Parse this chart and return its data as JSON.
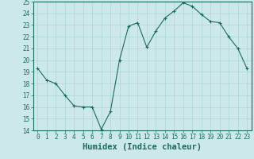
{
  "x": [
    0,
    1,
    2,
    3,
    4,
    5,
    6,
    7,
    8,
    9,
    10,
    11,
    12,
    13,
    14,
    15,
    16,
    17,
    18,
    19,
    20,
    21,
    22,
    23
  ],
  "y": [
    19.3,
    18.3,
    18.0,
    17.0,
    16.1,
    16.0,
    16.0,
    14.1,
    15.6,
    20.0,
    22.9,
    23.2,
    21.1,
    22.5,
    23.6,
    24.2,
    24.9,
    24.6,
    23.9,
    23.3,
    23.2,
    22.0,
    21.0,
    19.3
  ],
  "xlim": [
    -0.5,
    23.5
  ],
  "ylim": [
    14,
    25
  ],
  "yticks": [
    14,
    15,
    16,
    17,
    18,
    19,
    20,
    21,
    22,
    23,
    24,
    25
  ],
  "xticks": [
    0,
    1,
    2,
    3,
    4,
    5,
    6,
    7,
    8,
    9,
    10,
    11,
    12,
    13,
    14,
    15,
    16,
    17,
    18,
    19,
    20,
    21,
    22,
    23
  ],
  "xlabel": "Humidex (Indice chaleur)",
  "line_color": "#1a6b5a",
  "marker_color": "#1a6b5a",
  "bg_color": "#cce8e8",
  "grid_color": "#aad4d4",
  "axis_color": "#1a6b5a",
  "tick_label_color": "#1a6b5a",
  "xlabel_color": "#1a6b5a",
  "tick_fontsize": 5.5,
  "xlabel_fontsize": 7.5
}
